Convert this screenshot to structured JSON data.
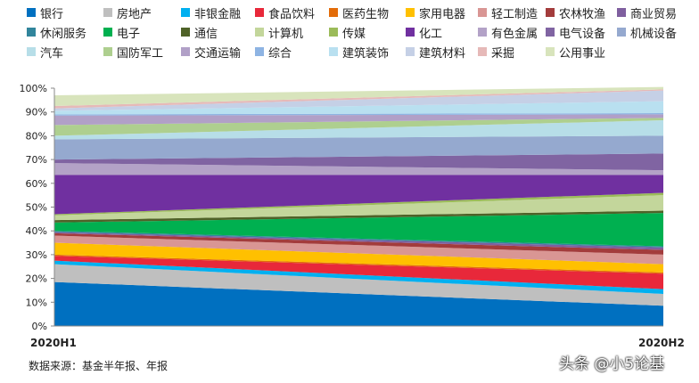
{
  "chart_data": {
    "type": "area",
    "stacked": true,
    "x": [
      "2020H1",
      "2020H2"
    ],
    "ylim": [
      0,
      100
    ],
    "yticks": [
      "0%",
      "10%",
      "20%",
      "30%",
      "40%",
      "50%",
      "60%",
      "70%",
      "80%",
      "90%",
      "100%"
    ],
    "series": [
      {
        "name": "银行",
        "color": "#0070c0",
        "values": [
          18.5,
          8.5
        ]
      },
      {
        "name": "房地产",
        "color": "#bfbfbf",
        "values": [
          7.5,
          5.0
        ]
      },
      {
        "name": "非银金融",
        "color": "#00b0f0",
        "values": [
          1.5,
          2.0
        ]
      },
      {
        "name": "食品饮料",
        "color": "#e8283a",
        "values": [
          2.0,
          6.5
        ]
      },
      {
        "name": "医药生物",
        "color": "#e36c09",
        "values": [
          0.5,
          0.5
        ]
      },
      {
        "name": "家用电器",
        "color": "#ffc000",
        "values": [
          5.0,
          3.5
        ]
      },
      {
        "name": "轻工制造",
        "color": "#d99694",
        "values": [
          3.0,
          4.0
        ]
      },
      {
        "name": "农林牧渔",
        "color": "#a33c3c",
        "values": [
          1.0,
          2.0
        ]
      },
      {
        "name": "商业贸易",
        "color": "#7f5f9f",
        "values": [
          0.5,
          1.0
        ]
      },
      {
        "name": "休闲服务",
        "color": "#31859c",
        "values": [
          0.5,
          0.5
        ]
      },
      {
        "name": "电子",
        "color": "#00b050",
        "values": [
          3.5,
          14.0
        ]
      },
      {
        "name": "通信",
        "color": "#4f6228",
        "values": [
          1.0,
          1.0
        ]
      },
      {
        "name": "计算机",
        "color": "#c3d69b",
        "values": [
          2.0,
          6.5
        ]
      },
      {
        "name": "传媒",
        "color": "#9bbb59",
        "values": [
          0.5,
          1.0
        ]
      },
      {
        "name": "化工",
        "color": "#7030a0",
        "values": [
          16.5,
          7.5
        ]
      },
      {
        "name": "有色金属",
        "color": "#b3a2c7",
        "values": [
          5.0,
          2.0
        ]
      },
      {
        "name": "电气设备",
        "color": "#8064a2",
        "values": [
          1.5,
          7.0
        ]
      },
      {
        "name": "机械设备",
        "color": "#95a9cf",
        "values": [
          8.5,
          7.5
        ]
      },
      {
        "name": "汽车",
        "color": "#b7dee8",
        "values": [
          1.5,
          6.5
        ]
      },
      {
        "name": "国防军工",
        "color": "#aecf8f",
        "values": [
          4.5,
          1.0
        ]
      },
      {
        "name": "交通运输",
        "color": "#b1a0c7",
        "values": [
          4.0,
          1.5
        ]
      },
      {
        "name": "综合",
        "color": "#8eb4e3",
        "values": [
          0.5,
          0.5
        ]
      },
      {
        "name": "建筑装饰",
        "color": "#b9e0f0",
        "values": [
          1.5,
          5.0
        ]
      },
      {
        "name": "建筑材料",
        "color": "#c5d0e6",
        "values": [
          1.0,
          4.5
        ]
      },
      {
        "name": "采掘",
        "color": "#e6b9b8",
        "values": [
          1.0,
          0.5
        ]
      },
      {
        "name": "公用事业",
        "color": "#d8e4bc",
        "values": [
          4.5,
          1.0
        ]
      }
    ]
  },
  "source_note": "数据来源：基金半年报、年报",
  "watermark": "头条 @小5论基"
}
